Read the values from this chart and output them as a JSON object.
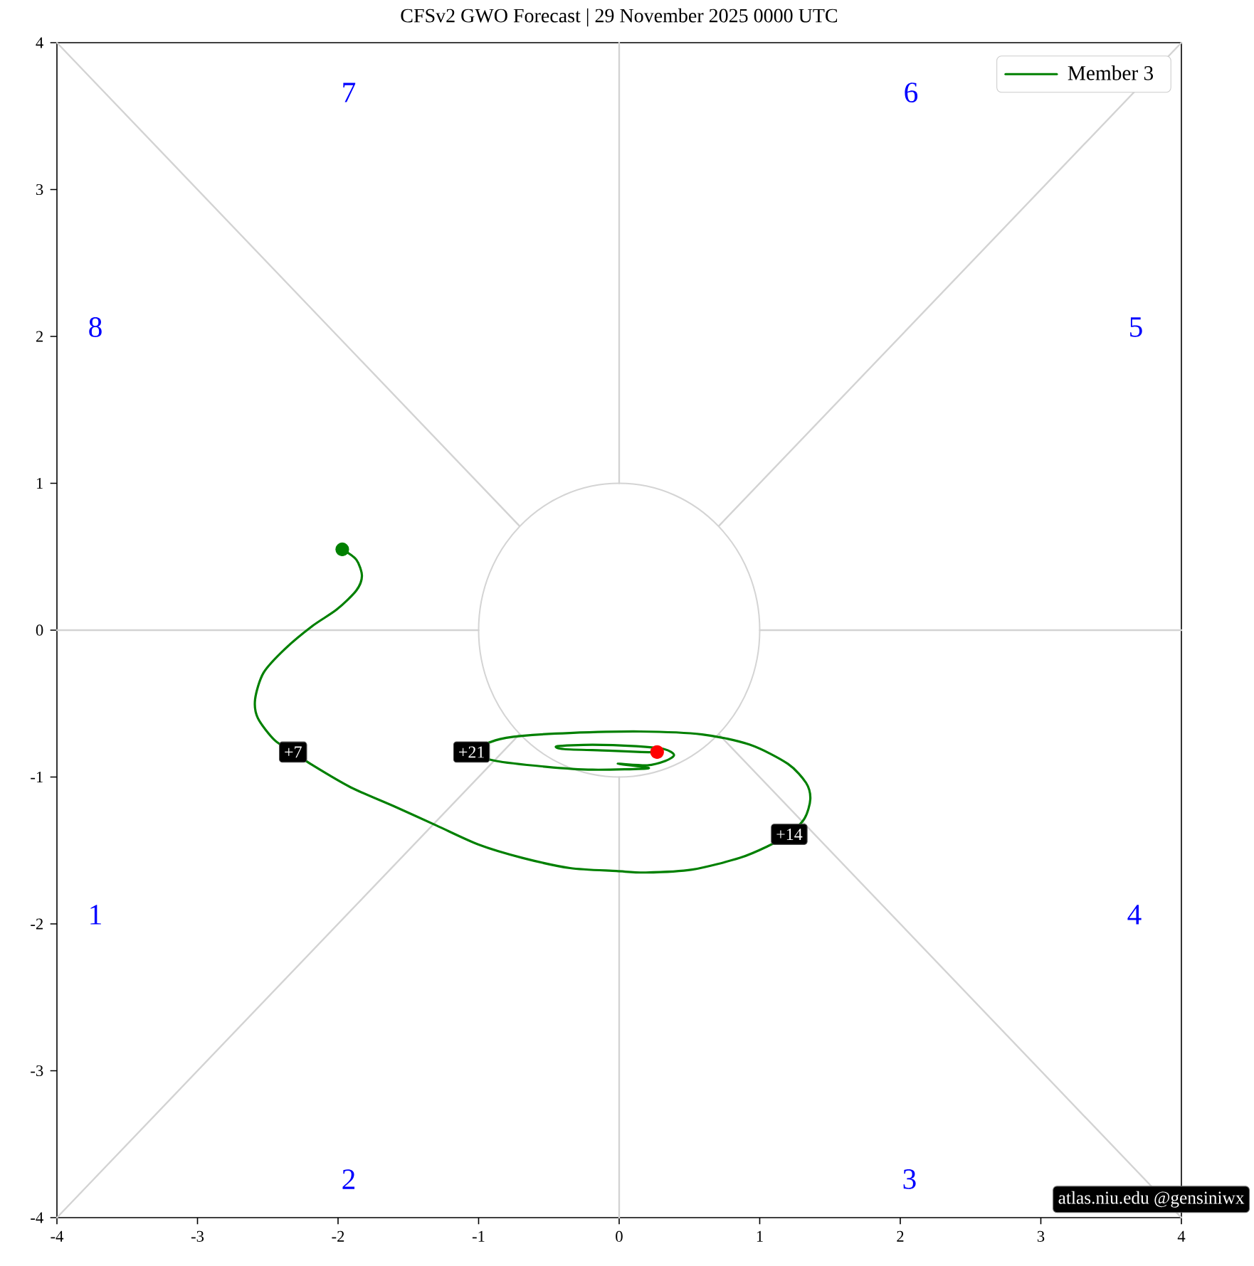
{
  "chart_data": {
    "type": "line",
    "title": "CFSv2 GWO Forecast | 29 November 2025 0000 UTC",
    "xlim": [
      -4,
      4
    ],
    "ylim": [
      -4,
      4
    ],
    "xticks": [
      -4,
      -3,
      -2,
      -1,
      0,
      1,
      2,
      3,
      4
    ],
    "yticks": [
      -4,
      -3,
      -2,
      -1,
      0,
      1,
      2,
      3,
      4
    ],
    "legend": "top right",
    "annotations": [
      "7",
      "6",
      "8",
      "5",
      "1",
      "4",
      "2",
      "3",
      {
        "text": "+7",
        "x": -2.32,
        "y": -0.83
      },
      {
        "text": "+14",
        "x": 1.21,
        "y": -1.39
      },
      {
        "text": "+21",
        "x": -1.05,
        "y": -0.83
      },
      "atlas.niu.edu @gensiniwx"
    ],
    "series": [
      {
        "color": "#d3d3d3",
        "x": [
          0,
          0
        ],
        "values": [
          1,
          4
        ]
      },
      {
        "color": "#d3d3d3",
        "x": [
          0,
          0
        ],
        "values": [
          -1,
          -4
        ]
      },
      {
        "color": "#d3d3d3",
        "x": [
          -4,
          -1
        ],
        "values": [
          0,
          0
        ]
      },
      {
        "color": "#d3d3d3",
        "x": [
          1,
          4
        ],
        "values": [
          0,
          0
        ]
      },
      {
        "color": "#d3d3d3",
        "x": [
          -4,
          -0.71
        ],
        "values": [
          4,
          0.71
        ]
      },
      {
        "color": "#d3d3d3",
        "x": [
          0.71,
          4
        ],
        "values": [
          -0.71,
          -4
        ]
      },
      {
        "color": "#d3d3d3",
        "x": [
          -4,
          -0.71
        ],
        "values": [
          -4,
          -0.71
        ]
      },
      {
        "color": "#d3d3d3",
        "x": [
          0.71,
          4
        ],
        "values": [
          0.71,
          4
        ]
      },
      {
        "name": "Member 3",
        "color": "#008000",
        "x": [
          -1.97,
          -1.87,
          -1.83,
          -1.87,
          -2.01,
          -2.18,
          -2.38,
          -2.53,
          -2.59,
          -2.57,
          -2.45,
          -2.32,
          -2.18,
          -1.91,
          -1.6,
          -1.3,
          -1.0,
          -0.69,
          -0.35,
          -0.02,
          0.19,
          0.52,
          0.86,
          1.06,
          1.21,
          1.32,
          1.36,
          1.33,
          1.2,
          0.93,
          0.59,
          0.15,
          -0.35,
          -0.69,
          -0.88,
          -1.05,
          -0.88,
          -0.52,
          -0.19,
          0.21,
          -0.01,
          0.2,
          0.33,
          0.39,
          0.32,
          0.12,
          -0.19,
          -0.44,
          -0.39,
          -0.08,
          0.16,
          0.27
        ],
        "values": [
          0.55,
          0.48,
          0.37,
          0.27,
          0.14,
          0.03,
          -0.13,
          -0.29,
          -0.47,
          -0.6,
          -0.75,
          -0.83,
          -0.92,
          -1.07,
          -1.2,
          -1.33,
          -1.46,
          -1.55,
          -1.62,
          -1.64,
          -1.65,
          -1.63,
          -1.55,
          -1.47,
          -1.39,
          -1.28,
          -1.15,
          -1.04,
          -0.91,
          -0.78,
          -0.71,
          -0.69,
          -0.7,
          -0.72,
          -0.75,
          -0.83,
          -0.89,
          -0.93,
          -0.95,
          -0.94,
          -0.91,
          -0.92,
          -0.89,
          -0.85,
          -0.81,
          -0.79,
          -0.78,
          -0.79,
          -0.81,
          -0.82,
          -0.83,
          -0.83
        ]
      },
      {
        "type": "scatter",
        "marker": "circle",
        "color": "#008000",
        "x": [
          -1.97
        ],
        "values": [
          0.55
        ]
      },
      {
        "type": "scatter",
        "marker": "circle",
        "color": "#ff0000",
        "x": [
          0.27
        ],
        "values": [
          -0.83
        ]
      }
    ]
  }
}
